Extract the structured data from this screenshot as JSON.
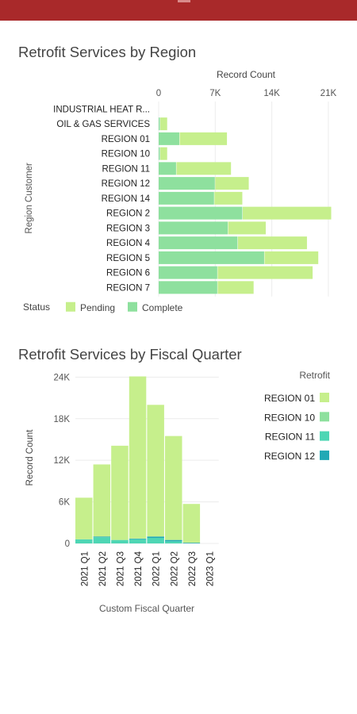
{
  "chart_data": [
    {
      "type": "bar",
      "orientation": "horizontal",
      "stacked": true,
      "title": "Retrofit Services by Region",
      "xlabel": "Record Count",
      "ylabel": "Region Customer",
      "xlim": [
        0,
        21500
      ],
      "xticks": [
        0,
        7000,
        14000,
        21000
      ],
      "xtick_labels": [
        "0",
        "7K",
        "14K",
        "21K"
      ],
      "categories": [
        "INDUSTRIAL HEAT R...",
        "OIL & GAS SERVICES",
        "REGION 01",
        "REGION 10",
        "REGION 11",
        "REGION 12",
        "REGION 14",
        "REGION 2",
        "REGION 3",
        "REGION 4",
        "REGION 5",
        "REGION 6",
        "REGION 7"
      ],
      "legend_title": "Status",
      "legend_position": "bottom-left",
      "series": [
        {
          "name": "Complete",
          "color": "#8ee09e",
          "values": [
            0,
            200,
            2600,
            200,
            2200,
            7000,
            6900,
            10400,
            8600,
            9800,
            13100,
            7300,
            7300
          ]
        },
        {
          "name": "Pending",
          "color": "#c6ef8c",
          "values": [
            0,
            900,
            5900,
            900,
            6800,
            4200,
            3500,
            11000,
            4700,
            8600,
            6700,
            11800,
            4500
          ]
        }
      ],
      "grid": true
    },
    {
      "type": "bar",
      "orientation": "vertical",
      "stacked": true,
      "title": "Retrofit Services by Fiscal Quarter",
      "xlabel": "Custom Fiscal Quarter",
      "ylabel": "Record Count",
      "ylim": [
        0,
        24500
      ],
      "yticks": [
        0,
        6000,
        12000,
        18000,
        24000
      ],
      "ytick_labels": [
        "0",
        "6K",
        "12K",
        "18K",
        "24K"
      ],
      "categories": [
        "2021 Q1",
        "2021 Q2",
        "2021 Q3",
        "2021 Q4",
        "2022 Q1",
        "2022 Q2",
        "2022 Q3",
        "2023 Q1"
      ],
      "legend_title": "Retrofit",
      "legend_position": "right",
      "series": [
        {
          "name": "REGION 01",
          "color": "#c6ef8c",
          "values": [
            6000,
            10400,
            13600,
            23400,
            19000,
            15000,
            5600,
            0
          ]
        },
        {
          "name": "REGION 10",
          "color": "#8ee09e",
          "values": [
            0,
            0,
            0,
            0,
            0,
            0,
            0,
            0
          ]
        },
        {
          "name": "REGION 11",
          "color": "#4ed6b4",
          "values": [
            600,
            900,
            500,
            600,
            800,
            300,
            0,
            0
          ]
        },
        {
          "name": "REGION 12",
          "color": "#22a9b5",
          "values": [
            0,
            100,
            0,
            100,
            200,
            200,
            100,
            0
          ]
        }
      ],
      "grid": true
    }
  ]
}
